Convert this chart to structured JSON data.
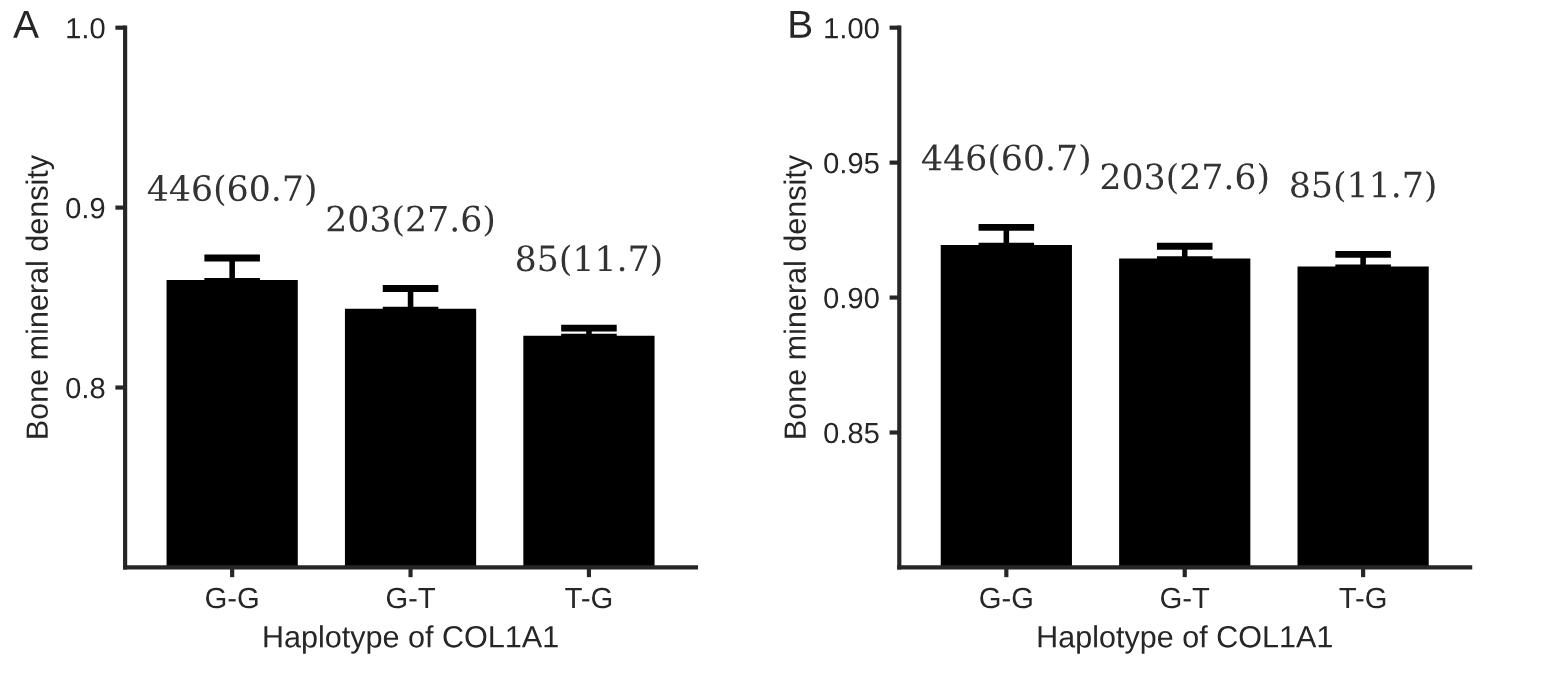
{
  "chart_data": [
    {
      "type": "bar",
      "xlabel": "Haplotype of COL1A1",
      "ylabel": "Bone mineral density",
      "categories": [
        "G-G",
        "G-T",
        "T-G"
      ],
      "values": [
        0.859,
        0.843,
        0.828
      ],
      "color": "#000000",
      "errors": [
        [
          0.859,
          0.872
        ],
        [
          0.843,
          0.855
        ],
        [
          0.828,
          0.833
        ]
      ],
      "ylim": [
        0.7,
        1.0
      ],
      "yticks": [
        0.8,
        0.9,
        {
          "value": 1.0,
          "label": "1.0"
        }
      ],
      "grid": false,
      "annotations": [
        "A",
        "446(60.7)",
        "203(27.6)",
        "85(11.7)"
      ]
    },
    {
      "type": "bar",
      "xlabel": "Haplotype of COL1A1",
      "ylabel": "Bone mineral density",
      "categories": [
        "G-G",
        "G-T",
        "T-G"
      ],
      "values": [
        0.919,
        0.914,
        0.911
      ],
      "color": "#000000",
      "errors": [
        [
          0.919,
          0.926
        ],
        [
          0.914,
          0.919
        ],
        [
          0.911,
          0.916
        ]
      ],
      "ylim": [
        0.8,
        1.0
      ],
      "yticks": [
        {
          "value": 0.85,
          "label": "0.85"
        },
        {
          "value": 0.9,
          "label": "0.90"
        },
        {
          "value": 0.95,
          "label": "0.95"
        },
        {
          "value": 1.0,
          "label": "1.00"
        }
      ],
      "grid": false,
      "annotations": [
        "B",
        "446(60.7)",
        "203(27.6)",
        "85(11.7)"
      ]
    }
  ]
}
